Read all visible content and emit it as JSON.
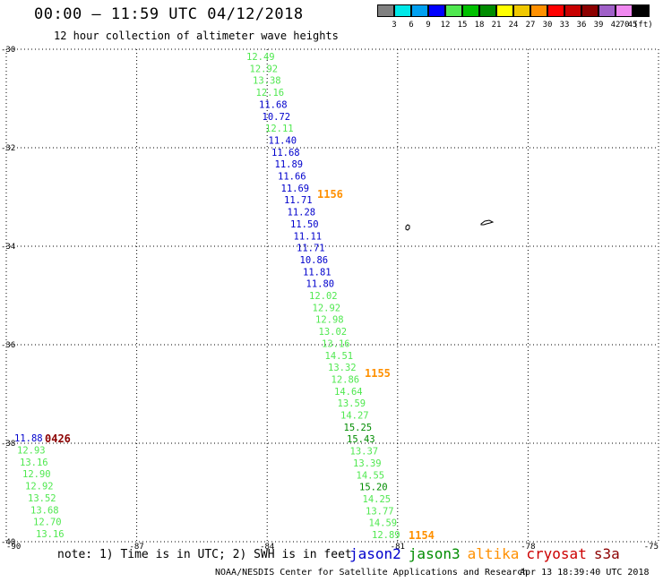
{
  "header": {
    "title": "00:00 – 11:59 UTC 04/12/2018",
    "subtitle": "12 hour collection of altimeter wave heights"
  },
  "colorbar": {
    "colors": [
      "#808080",
      "#00e8e8",
      "#00a0f0",
      "#0000ff",
      "#50e850",
      "#00c000",
      "#008c00",
      "#ffff00",
      "#f0c800",
      "#ff9000",
      "#ff0000",
      "#c80000",
      "#8c0000",
      "#a060c8",
      "#f088f0",
      "#000000"
    ],
    "labels": [
      "3",
      "6",
      "9",
      "12",
      "15",
      "18",
      "21",
      "24",
      "27",
      "30",
      "33",
      "36",
      "39",
      "42",
      "45",
      "70",
      "(ft)"
    ]
  },
  "map": {
    "lat_labels": [
      "-30",
      "-32",
      "-34",
      "-36",
      "-38",
      "-40"
    ],
    "lon_labels": [
      "-90",
      "-87",
      "-84",
      "-81",
      "-78",
      "-75"
    ],
    "lon_range": [
      -90,
      -75
    ],
    "lat_range": [
      -30,
      -40
    ],
    "grid": "dotted",
    "series_colors": {
      "jason2": "#0000cc",
      "jason3": "#008c00",
      "altika": "#ff9000",
      "cryosat": "#cc0000",
      "s3a": "#8c0000",
      "light_green": "#50e850"
    },
    "track_main": [
      {
        "v": "12.49",
        "c": "light_green"
      },
      {
        "v": "12.92",
        "c": "light_green"
      },
      {
        "v": "13.38",
        "c": "light_green"
      },
      {
        "v": "12.16",
        "c": "light_green"
      },
      {
        "v": "11.68",
        "c": "jason2"
      },
      {
        "v": "10.72",
        "c": "jason2"
      },
      {
        "v": "12.11",
        "c": "light_green"
      },
      {
        "v": "11.40",
        "c": "jason2"
      },
      {
        "v": "11.68",
        "c": "jason2"
      },
      {
        "v": "11.89",
        "c": "jason2"
      },
      {
        "v": "11.66",
        "c": "jason2"
      },
      {
        "v": "11.69",
        "c": "jason2"
      },
      {
        "v": "11.71",
        "c": "jason2"
      },
      {
        "v": "11.28",
        "c": "jason2"
      },
      {
        "v": "11.50",
        "c": "jason2"
      },
      {
        "v": "11.11",
        "c": "jason2"
      },
      {
        "v": "11.71",
        "c": "jason2"
      },
      {
        "v": "10.86",
        "c": "jason2"
      },
      {
        "v": "11.81",
        "c": "jason2"
      },
      {
        "v": "11.80",
        "c": "jason2"
      },
      {
        "v": "12.02",
        "c": "light_green"
      },
      {
        "v": "12.92",
        "c": "light_green"
      },
      {
        "v": "12.98",
        "c": "light_green"
      },
      {
        "v": "13.02",
        "c": "light_green"
      },
      {
        "v": "13.16",
        "c": "light_green"
      },
      {
        "v": "14.51",
        "c": "light_green"
      },
      {
        "v": "13.32",
        "c": "light_green"
      },
      {
        "v": "12.86",
        "c": "light_green"
      },
      {
        "v": "14.64",
        "c": "light_green"
      },
      {
        "v": "13.59",
        "c": "light_green"
      },
      {
        "v": "14.27",
        "c": "light_green"
      },
      {
        "v": "15.25",
        "c": "jason3"
      },
      {
        "v": "15.43",
        "c": "jason3"
      },
      {
        "v": "13.37",
        "c": "light_green"
      },
      {
        "v": "13.39",
        "c": "light_green"
      },
      {
        "v": "14.55",
        "c": "light_green"
      },
      {
        "v": "15.20",
        "c": "jason3"
      },
      {
        "v": "14.25",
        "c": "light_green"
      },
      {
        "v": "13.77",
        "c": "light_green"
      },
      {
        "v": "14.59",
        "c": "light_green"
      },
      {
        "v": "12.89",
        "c": "light_green"
      }
    ],
    "track_left": [
      {
        "v": "11.88",
        "c": "jason2"
      },
      {
        "v": "12.93",
        "c": "light_green"
      },
      {
        "v": "13.16",
        "c": "light_green"
      },
      {
        "v": "12.90",
        "c": "light_green"
      },
      {
        "v": "12.92",
        "c": "light_green"
      },
      {
        "v": "13.52",
        "c": "light_green"
      },
      {
        "v": "13.68",
        "c": "light_green"
      },
      {
        "v": "12.70",
        "c": "light_green"
      },
      {
        "v": "13.16",
        "c": "light_green"
      }
    ],
    "pass_times": [
      {
        "t": "1156",
        "c": "altika"
      },
      {
        "t": "1155",
        "c": "altika"
      },
      {
        "t": "1154",
        "c": "altika"
      },
      {
        "t": "0426",
        "c": "s3a"
      }
    ]
  },
  "footer": {
    "note": "note: 1) Time is in UTC; 2) SWH is in feet",
    "legend": [
      {
        "name": "jason2",
        "color": "#0000cc"
      },
      {
        "name": "jason3",
        "color": "#008c00"
      },
      {
        "name": "altika",
        "color": "#ff9000"
      },
      {
        "name": "cryosat",
        "color": "#cc0000"
      },
      {
        "name": "s3a",
        "color": "#8c0000"
      }
    ],
    "credit": "NOAA/NESDIS Center for Satellite Applications and Research",
    "timestamp": "Apr 13 18:39:40 UTC 2018"
  }
}
